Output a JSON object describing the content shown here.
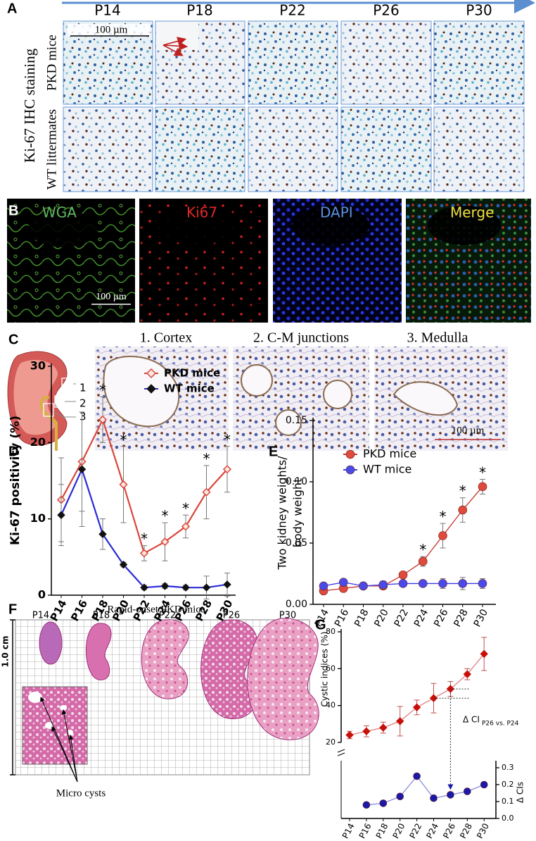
{
  "panel_labels": [
    "A",
    "B",
    "C",
    "D",
    "E",
    "F",
    "G"
  ],
  "panel_a": {
    "timepoints": [
      "P14",
      "P18",
      "P22",
      "P26",
      "P30"
    ],
    "side_label": "Ki-67 IHC staining",
    "row_labels": [
      "PKD mice",
      "WT littermates"
    ],
    "scale_bar": "100 µm"
  },
  "panel_b": {
    "channels": [
      "WGA",
      "Ki67",
      "DAPI",
      "Merge"
    ],
    "scale_bar": "100 µm"
  },
  "panel_c": {
    "regions": [
      "1. Cortex",
      "2. C-M junctions",
      "3. Medulla"
    ],
    "kidney_labels": [
      "1",
      "2",
      "3"
    ],
    "scale_bar": "100 µm"
  },
  "panel_f": {
    "title": "Rapid-onset PKD mice",
    "timepoints": [
      "P14",
      "P18",
      "P22",
      "P26",
      "P30"
    ],
    "scale_label": "1.0 cm",
    "inset_label": "Micro cysts"
  },
  "chart_data": [
    {
      "type": "line",
      "y_label": "Ki-67 positivity (%)",
      "categories": [
        "P14",
        "P16",
        "P18",
        "P20",
        "P22",
        "P24",
        "P26",
        "P28",
        "P30"
      ],
      "ylim": [
        0,
        30
      ],
      "yticks": [
        0,
        10,
        20,
        30
      ],
      "legend": "upper right",
      "series": [
        {
          "name": "PKD mice",
          "color": "#d9463b",
          "marker": "diamond-open",
          "marker_color": "#d9463b",
          "values": [
            12.5,
            17.5,
            23,
            14.5,
            5.5,
            7,
            9,
            13.5,
            16.5
          ],
          "errors": [
            5.5,
            6.5,
            3,
            5,
            1,
            2.5,
            1.5,
            3.5,
            3
          ]
        },
        {
          "name": "WT mice",
          "color": "#2b2bd6",
          "marker": "diamond",
          "marker_color": "#111111",
          "values": [
            10.5,
            16.5,
            8,
            4,
            1,
            1.2,
            1,
            1,
            1.4
          ],
          "errors": [
            4,
            7.5,
            2,
            0.3,
            0.3,
            0.3,
            0.3,
            1.5,
            1.5
          ]
        }
      ],
      "significance": [
        null,
        null,
        "*",
        "*",
        "*",
        "*",
        "*",
        "*",
        "*"
      ]
    },
    {
      "type": "line",
      "y_label": [
        "Two kidney weights/",
        "body weight"
      ],
      "categories": [
        "P14",
        "P16",
        "P18",
        "P20",
        "P22",
        "P24",
        "P26",
        "P28",
        "P30"
      ],
      "ylim": [
        0,
        0.15
      ],
      "yticks": [
        {
          "value": 0,
          "label": "0.00"
        },
        {
          "value": 0.05,
          "label": "0.05"
        },
        {
          "value": 0.1,
          "label": "0.10"
        },
        {
          "value": 0.15,
          "label": "0.15"
        }
      ],
      "legend": "upper left",
      "series": [
        {
          "name": "PKD mice",
          "color": "#c8322a",
          "marker": "circle",
          "marker_color": "#de4a3c",
          "values": [
            0.011,
            0.013,
            0.015,
            0.015,
            0.024,
            0.035,
            0.056,
            0.077,
            0.096
          ],
          "errors": [
            0.002,
            0.002,
            0.002,
            0.002,
            0.002,
            0.004,
            0.01,
            0.01,
            0.006
          ]
        },
        {
          "name": "WT mice",
          "color": "#3a3ae0",
          "marker": "circle",
          "marker_color": "#4a4ae8",
          "values": [
            0.015,
            0.018,
            0.015,
            0.016,
            0.017,
            0.017,
            0.017,
            0.017,
            0.017
          ],
          "errors": [
            0.002,
            0.002,
            0.002,
            0.003,
            0.002,
            0.002,
            0.004,
            0.005,
            0.004
          ]
        }
      ],
      "significance": [
        null,
        null,
        null,
        null,
        null,
        "*",
        "*",
        "*",
        "*"
      ]
    },
    {
      "type": "line",
      "y_label": "Cystic indices (%)",
      "ylim": [
        20,
        80
      ],
      "yticks": [
        20,
        40,
        60,
        80
      ],
      "series": [
        {
          "color": "#e08080",
          "marker": "diamond",
          "marker_color": "#c8100a",
          "values": [
            24,
            26,
            28,
            31.5,
            39,
            44,
            49,
            57,
            68
          ],
          "errors": [
            2,
            3,
            3,
            8,
            4,
            8,
            4,
            3,
            9
          ]
        }
      ],
      "annotation": {
        "text": "Δ CI",
        "subscript": "P26 vs. P24"
      }
    },
    {
      "type": "line",
      "y2_label": "Δ CIs",
      "categories": [
        "P14",
        "P16",
        "P18",
        "P20",
        "P22",
        "P24",
        "P26",
        "P28",
        "P30"
      ],
      "y2lim": [
        0,
        0.3
      ],
      "y2ticks": [
        {
          "value": 0,
          "label": "0.0"
        },
        {
          "value": 0.1,
          "label": "0.1"
        },
        {
          "value": 0.2,
          "label": "0.2"
        },
        {
          "value": 0.3,
          "label": "0.3"
        }
      ],
      "series": [
        {
          "axis": "y2",
          "color": "#8a8ade",
          "marker": "circle",
          "marker_color": "#1a1aa8",
          "values": [
            null,
            0.08,
            0.09,
            0.13,
            0.25,
            0.12,
            0.14,
            0.16,
            0.2
          ]
        }
      ]
    }
  ]
}
